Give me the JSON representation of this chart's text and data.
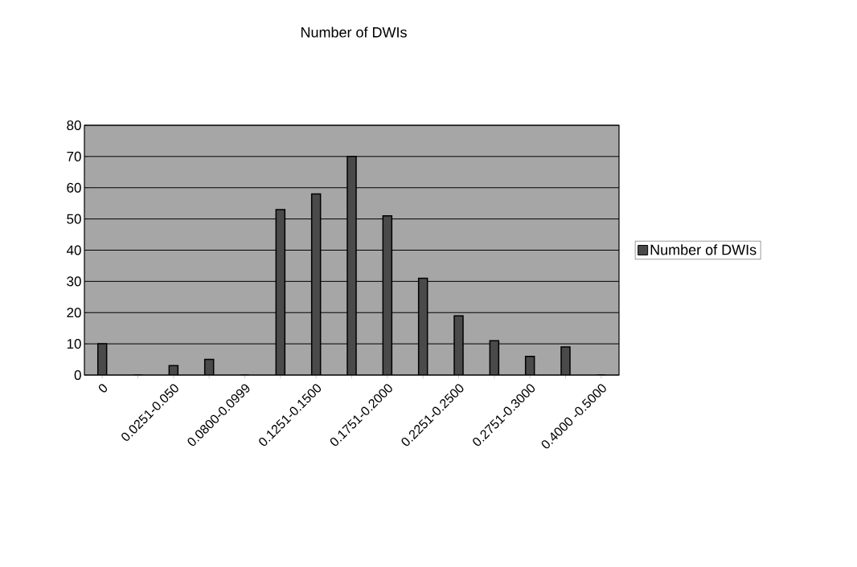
{
  "chart_data": {
    "type": "bar",
    "title": "Number of DWIs",
    "categories": [
      "0",
      null,
      "0.0251-0.050",
      null,
      "0.0800-0.0999",
      null,
      "0.1251-0.1500",
      null,
      "0.1751-0.2000",
      null,
      "0.2251-0.2500",
      null,
      "0.2751-0.3000",
      null,
      "0.4000 -0.5000"
    ],
    "series": [
      {
        "name": "Number of DWIs",
        "color": "#4a4a4a",
        "values": [
          10,
          0,
          3,
          5,
          0,
          53,
          58,
          70,
          51,
          31,
          19,
          11,
          6,
          9,
          0
        ]
      }
    ],
    "ylim": [
      0,
      80
    ],
    "yticks": [
      0,
      10,
      20,
      30,
      40,
      50,
      60,
      70,
      80
    ],
    "grid": "y",
    "legend": "right"
  }
}
